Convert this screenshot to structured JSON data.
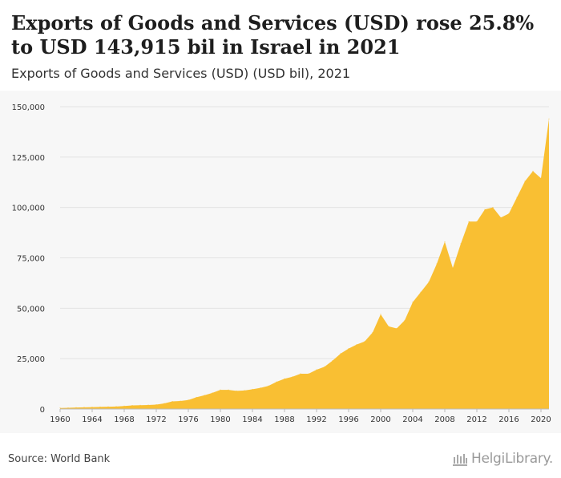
{
  "header": {
    "title": "Exports of Goods and Services (USD) rose 25.8% to USD 143,915 bil in Israel in 2021",
    "subtitle": "Exports of Goods and Services (USD) (USD bil), 2021"
  },
  "footer": {
    "source": "Source: World Bank",
    "logo_icon": "library-building-icon",
    "logo_text": "HelgiLibrary."
  },
  "colors": {
    "area_fill": "#f9bf33",
    "plot_background": "#f7f7f7",
    "gridline": "#e3e3e3",
    "axis_text": "#333333"
  },
  "chart_data": {
    "type": "area",
    "title": "",
    "xlabel": "",
    "ylabel": "",
    "grid": true,
    "legend": "none",
    "xlim": [
      1960,
      2021
    ],
    "ylim": [
      0,
      150000
    ],
    "x_ticks": [
      1960,
      1964,
      1968,
      1972,
      1976,
      1980,
      1984,
      1988,
      1992,
      1996,
      2000,
      2004,
      2008,
      2012,
      2016,
      2020
    ],
    "y_ticks": [
      0,
      25000,
      50000,
      75000,
      100000,
      125000,
      150000
    ],
    "y_tick_labels": [
      "0",
      "25,000",
      "50,000",
      "75,000",
      "100,000",
      "125,000",
      "150,000"
    ],
    "series": [
      {
        "name": "",
        "x": [
          1960,
          1961,
          1962,
          1963,
          1964,
          1965,
          1966,
          1967,
          1968,
          1969,
          1970,
          1971,
          1972,
          1973,
          1974,
          1975,
          1976,
          1977,
          1978,
          1979,
          1980,
          1981,
          1982,
          1983,
          1984,
          1985,
          1986,
          1987,
          1988,
          1989,
          1990,
          1991,
          1992,
          1993,
          1994,
          1995,
          1996,
          1997,
          1998,
          1999,
          2000,
          2001,
          2002,
          2003,
          2004,
          2005,
          2006,
          2007,
          2008,
          2009,
          2010,
          2011,
          2012,
          2013,
          2014,
          2015,
          2016,
          2017,
          2018,
          2019,
          2020,
          2021
        ],
        "values": [
          500,
          600,
          750,
          850,
          950,
          1050,
          1150,
          1250,
          1500,
          1800,
          1900,
          2000,
          2200,
          2800,
          3800,
          4000,
          4500,
          5800,
          6800,
          8000,
          9500,
          9500,
          9000,
          9200,
          9800,
          10500,
          11500,
          13500,
          15000,
          16000,
          17500,
          17500,
          19500,
          21000,
          24000,
          27500,
          30000,
          32000,
          33500,
          38000,
          47000,
          41000,
          40000,
          44000,
          53000,
          58000,
          63000,
          72000,
          83000,
          70000,
          82000,
          93000,
          93000,
          99000,
          100000,
          95000,
          97000,
          105000,
          113000,
          118000,
          114500,
          143915
        ]
      }
    ]
  }
}
